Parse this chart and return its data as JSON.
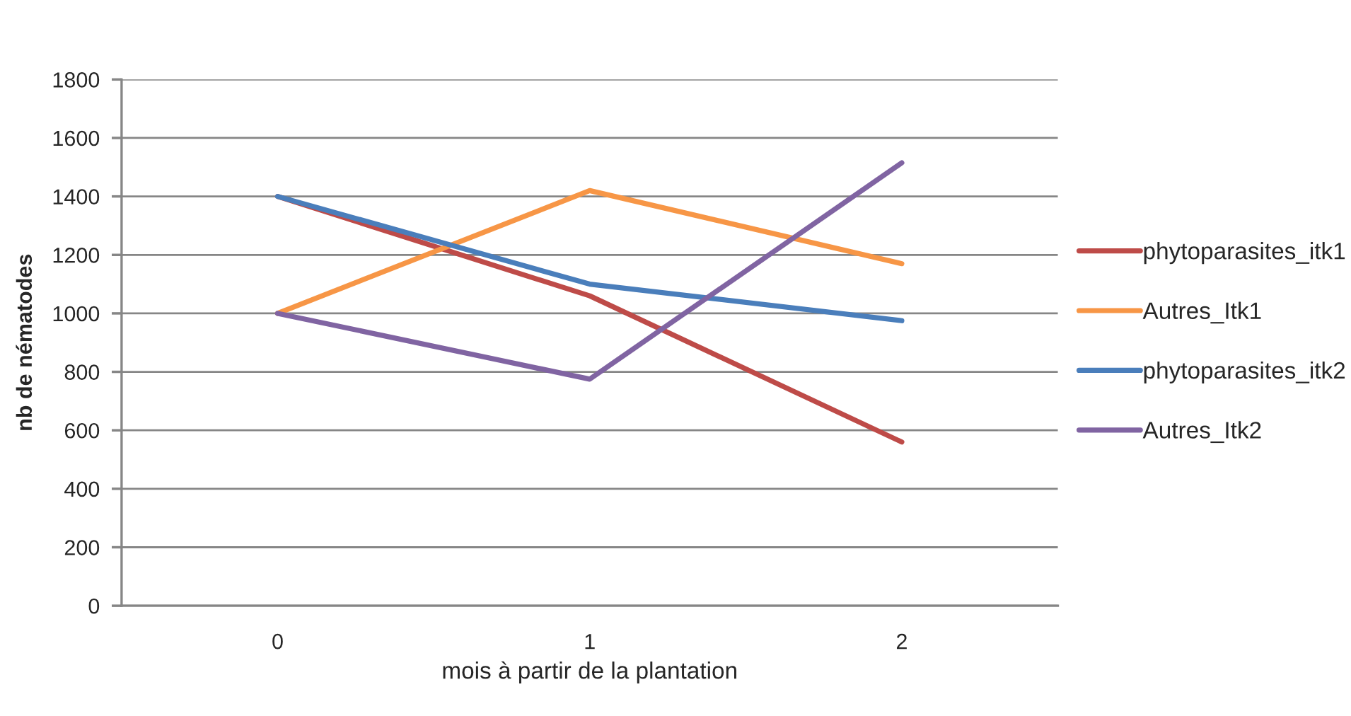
{
  "chart_data": {
    "type": "line",
    "xlabel": "mois à partir de la plantation",
    "ylabel": "nb de nématodes",
    "categories": [
      "0",
      "1",
      "2"
    ],
    "series": [
      {
        "name": "phytoparasites_itk1",
        "color": "#be4b48",
        "values": [
          1400,
          1060,
          560
        ]
      },
      {
        "name": "Autres_Itk1",
        "color": "#f79646",
        "values": [
          1000,
          1420,
          1170
        ]
      },
      {
        "name": "phytoparasites_itk2",
        "color": "#4a7ebb",
        "values": [
          1400,
          1100,
          975
        ]
      },
      {
        "name": "Autres_Itk2",
        "color": "#8064a2",
        "values": [
          1000,
          775,
          1515
        ]
      }
    ],
    "ylim": [
      0,
      1800
    ],
    "yticks": [
      0,
      200,
      400,
      600,
      800,
      1000,
      1200,
      1400,
      1600,
      1800
    ],
    "grid": "y",
    "legend": "right",
    "marker": "none",
    "line_style": "solid"
  }
}
